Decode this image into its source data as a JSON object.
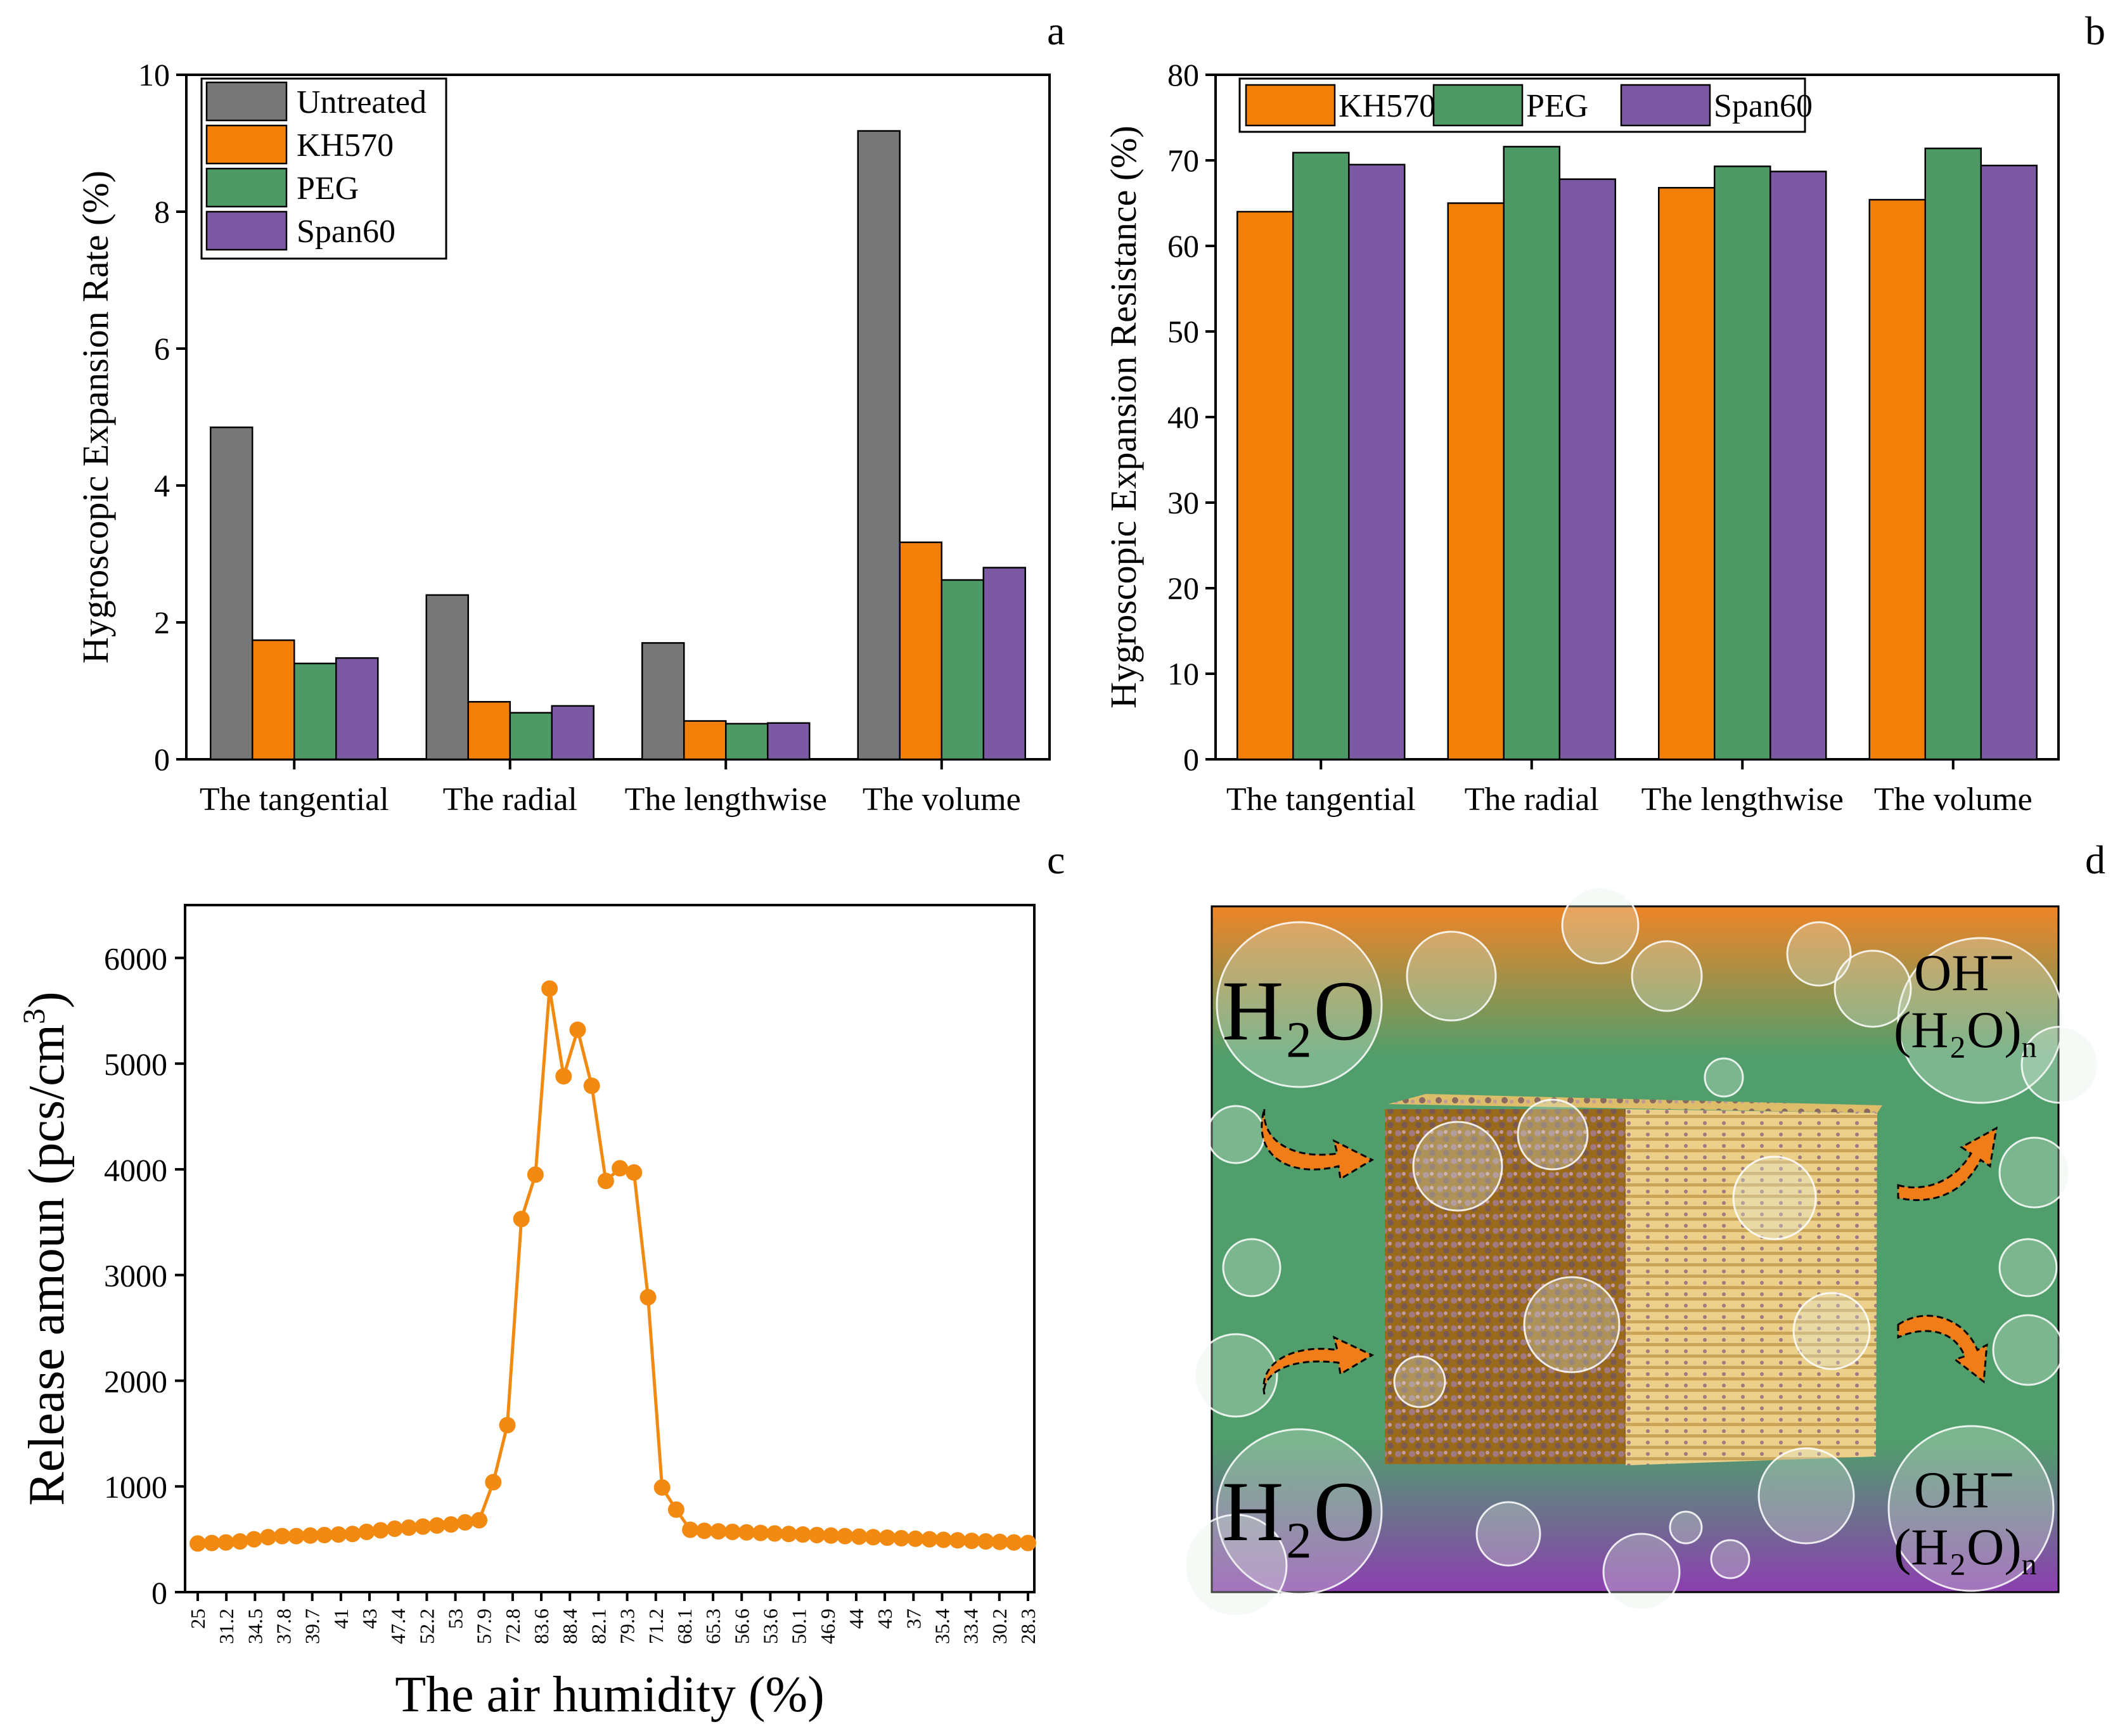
{
  "colors": {
    "Untreated": "#777777",
    "KH570": "#f28008",
    "PEG": "#4e9a66",
    "Span60": "#7c5aa3",
    "line": "#f28a12"
  },
  "chart_data": [
    {
      "panel": "a",
      "type": "bar",
      "ylabel": "Hygroscopic Expansion Rate (%)",
      "ylim": [
        0,
        10
      ],
      "yticks": [
        0,
        2,
        4,
        6,
        8,
        10
      ],
      "categories": [
        "The tangential",
        "The radial",
        "The lengthwise",
        "The volume"
      ],
      "legend_position": "top-left",
      "series": [
        {
          "name": "Untreated",
          "values": [
            4.85,
            2.4,
            1.7,
            9.18
          ]
        },
        {
          "name": "KH570",
          "values": [
            1.74,
            0.84,
            0.56,
            3.17
          ]
        },
        {
          "name": "PEG",
          "values": [
            1.4,
            0.68,
            0.52,
            2.62
          ]
        },
        {
          "name": "Span60",
          "values": [
            1.48,
            0.78,
            0.53,
            2.8
          ]
        }
      ]
    },
    {
      "panel": "b",
      "type": "bar",
      "ylabel": "Hygroscopic Expansion Resistance (%)",
      "ylim": [
        0,
        80
      ],
      "yticks": [
        0,
        10,
        20,
        30,
        40,
        50,
        60,
        70,
        80
      ],
      "categories": [
        "The tangential",
        "The radial",
        "The lengthwise",
        "The volume"
      ],
      "legend_position": "top",
      "series": [
        {
          "name": "KH570",
          "values": [
            64.0,
            65.0,
            66.8,
            65.4
          ]
        },
        {
          "name": "PEG",
          "values": [
            70.9,
            71.6,
            69.3,
            71.4
          ]
        },
        {
          "name": "Span60",
          "values": [
            69.5,
            67.8,
            68.7,
            69.4
          ]
        }
      ]
    },
    {
      "panel": "c",
      "type": "line",
      "xlabel": "The air humidity (%)",
      "ylabel_main": "Release amoun (pcs/cm",
      "ylabel_sup": "3",
      "ylabel_close": ")",
      "ylim": [
        0,
        6500
      ],
      "yticks": [
        0,
        1000,
        2000,
        3000,
        4000,
        5000,
        6000
      ],
      "x_tick_labels": [
        "25",
        "31.2",
        "34.5",
        "37.8",
        "39.7",
        "41",
        "43",
        "47.4",
        "52.2",
        "53",
        "57.9",
        "72.8",
        "83.6",
        "88.4",
        "82.1",
        "79.3",
        "71.2",
        "68.1",
        "65.3",
        "56.6",
        "53.6",
        "50.1",
        "46.9",
        "44",
        "43",
        "37",
        "35.4",
        "33.4",
        "30.2",
        "28.3"
      ],
      "values": [
        460,
        465,
        470,
        480,
        500,
        520,
        530,
        530,
        535,
        540,
        545,
        550,
        570,
        585,
        600,
        610,
        620,
        630,
        640,
        660,
        680,
        1040,
        1580,
        3530,
        3950,
        5710,
        4880,
        5320,
        4790,
        3890,
        4010,
        3970,
        2790,
        990,
        780,
        590,
        580,
        575,
        570,
        565,
        560,
        555,
        550,
        545,
        540,
        535,
        530,
        525,
        520,
        515,
        510,
        505,
        500,
        495,
        490,
        485,
        480,
        475,
        470,
        465
      ]
    }
  ],
  "panel_letters": {
    "a": "a",
    "b": "b",
    "c": "c",
    "d": "d"
  },
  "illustration": {
    "h2o_top": "H₂O",
    "h2o_bottom": "H₂O",
    "oh_top": "OH",
    "oh_bottom": "OH",
    "oh_charge": "−",
    "water_cluster": "(H₂O)",
    "cluster_sub": "n"
  }
}
